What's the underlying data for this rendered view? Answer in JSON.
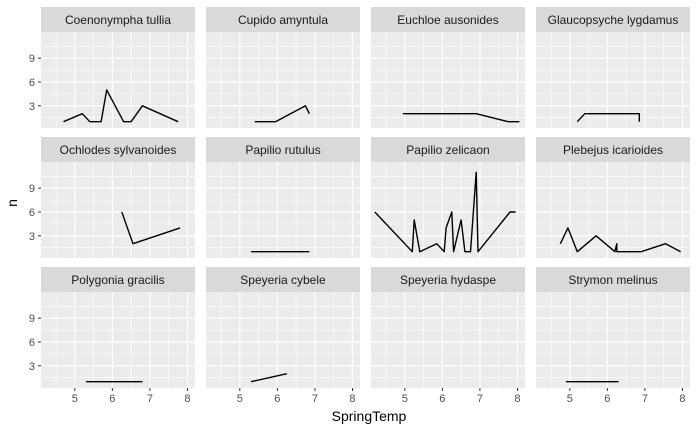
{
  "chart_data": {
    "type": "line",
    "xlabel": "SpringTemp",
    "ylabel": "n",
    "xlim": [
      4.1,
      8.2
    ],
    "ylim": [
      0.2,
      12.3
    ],
    "x_ticks": [
      5,
      6,
      7,
      8
    ],
    "y_ticks": [
      3,
      6,
      9
    ],
    "grid": true,
    "colors": {
      "panel_bg": "#ebebeb",
      "strip_bg": "#d9d9d9",
      "grid": "#ffffff",
      "line": "#000000",
      "text": "#1a1a1a",
      "axis_text": "#4d4d4d"
    },
    "facets": [
      {
        "name": "Coenonympha tullia",
        "points": [
          [
            4.7,
            1
          ],
          [
            5.2,
            2
          ],
          [
            5.4,
            1
          ],
          [
            5.7,
            1
          ],
          [
            5.85,
            5
          ],
          [
            6.3,
            1
          ],
          [
            6.5,
            1
          ],
          [
            6.8,
            3
          ],
          [
            7.75,
            1
          ]
        ]
      },
      {
        "name": "Cupido amyntula",
        "points": [
          [
            5.4,
            1
          ],
          [
            5.95,
            1
          ],
          [
            6.75,
            3
          ],
          [
            6.85,
            2
          ]
        ]
      },
      {
        "name": "Euchloe ausonides",
        "points": [
          [
            4.95,
            2
          ],
          [
            6.9,
            2
          ],
          [
            7.75,
            1
          ],
          [
            8.05,
            1
          ]
        ]
      },
      {
        "name": "Glaucopsyche lygdamus",
        "points": [
          [
            5.2,
            1
          ],
          [
            5.4,
            2
          ],
          [
            6.85,
            2
          ],
          [
            6.85,
            1
          ]
        ]
      },
      {
        "name": "Ochlodes sylvanoides",
        "points": [
          [
            6.25,
            6
          ],
          [
            6.55,
            2
          ],
          [
            7.8,
            4
          ]
        ]
      },
      {
        "name": "Papilio rutulus",
        "points": [
          [
            5.3,
            1
          ],
          [
            6.85,
            1
          ]
        ]
      },
      {
        "name": "Papilio zelicaon",
        "points": [
          [
            4.2,
            6
          ],
          [
            5.2,
            1
          ],
          [
            5.25,
            5
          ],
          [
            5.4,
            1
          ],
          [
            5.85,
            2
          ],
          [
            6.05,
            1
          ],
          [
            6.1,
            4
          ],
          [
            6.25,
            6
          ],
          [
            6.3,
            1
          ],
          [
            6.5,
            5
          ],
          [
            6.6,
            1
          ],
          [
            6.75,
            1
          ],
          [
            6.9,
            11
          ],
          [
            6.95,
            1
          ],
          [
            7.8,
            6
          ],
          [
            7.95,
            6
          ]
        ]
      },
      {
        "name": "Plebejus icarioides",
        "points": [
          [
            4.75,
            2
          ],
          [
            4.95,
            4
          ],
          [
            5.2,
            1
          ],
          [
            5.7,
            3
          ],
          [
            6.2,
            1
          ],
          [
            6.25,
            2
          ],
          [
            6.25,
            1
          ],
          [
            6.9,
            1
          ],
          [
            7.55,
            2
          ],
          [
            7.95,
            1
          ]
        ]
      },
      {
        "name": "Polygonia gracilis",
        "points": [
          [
            5.3,
            1
          ],
          [
            6.8,
            1
          ]
        ]
      },
      {
        "name": "Speyeria cybele",
        "points": [
          [
            5.3,
            1
          ],
          [
            6.25,
            2
          ]
        ]
      },
      {
        "name": "Speyeria hydaspe",
        "points": []
      },
      {
        "name": "Strymon melinus",
        "points": [
          [
            4.9,
            1
          ],
          [
            6.3,
            1
          ]
        ]
      }
    ]
  }
}
